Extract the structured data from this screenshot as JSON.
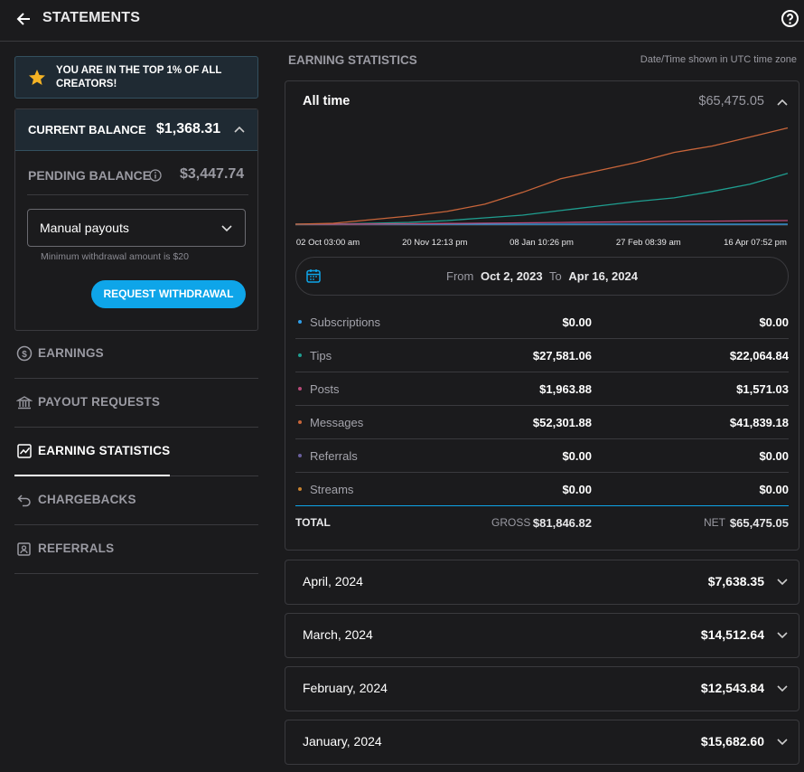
{
  "header": {
    "title": "STATEMENTS"
  },
  "sidebar": {
    "banner": "YOU ARE IN THE TOP 1% OF ALL CREATORS!",
    "current_balance": {
      "label": "CURRENT BALANCE",
      "value": "$1,368.31"
    },
    "pending_balance": {
      "label": "PENDING BALANCE",
      "value": "$3,447.74"
    },
    "payout_select": "Manual payouts",
    "note": "Minimum withdrawal amount is $20",
    "button": "REQUEST WITHDRAWAL",
    "nav": [
      "EARNINGS",
      "PAYOUT REQUESTS",
      "EARNING STATISTICS",
      "CHARGEBACKS",
      "REFERRALS"
    ],
    "active_nav": 2
  },
  "main": {
    "section_title": "EARNING STATISTICS",
    "timezone_note": "Date/Time shown in UTC time zone",
    "period": "All time",
    "period_total": "$65,475.05",
    "chart": {
      "type": "line",
      "ylim": [
        0,
        46000
      ],
      "xtick_labels": [
        "02 Oct 03:00 am",
        "20 Nov 12:13 pm",
        "08 Jan 10:26 pm",
        "27 Feb 08:39 am",
        "16 Apr 07:52 pm"
      ],
      "series": [
        {
          "color": "#2f9ee8",
          "values": [
            0,
            0,
            0,
            0,
            0,
            0,
            0,
            0,
            0,
            0,
            0,
            0,
            0,
            0
          ]
        },
        {
          "color": "#1f9e90",
          "values": [
            0,
            0,
            395,
            790,
            1580,
            2765,
            3950,
            5925,
            7900,
            9875,
            11455,
            14220,
            17380,
            22120
          ]
        },
        {
          "color": "#b84a78",
          "values": [
            0,
            0,
            100,
            200,
            300,
            450,
            600,
            750,
            900,
            1050,
            1200,
            1350,
            1450,
            1571
          ]
        },
        {
          "color": "#c8653a",
          "values": [
            0,
            395,
            1975,
            3555,
            5530,
            8690,
            13825,
            19750,
            23305,
            26860,
            31205,
            33970,
            37920,
            41870
          ]
        }
      ]
    },
    "date_range": {
      "from_label": "From",
      "from": "Oct 2, 2023",
      "to_label": "To",
      "to": "Apr 16, 2024"
    },
    "rows": [
      {
        "name": "Subscriptions",
        "color": "#2f9ee8",
        "gross": "$0.00",
        "net": "$0.00"
      },
      {
        "name": "Tips",
        "color": "#1f9e90",
        "gross": "$27,581.06",
        "net": "$22,064.84"
      },
      {
        "name": "Posts",
        "color": "#b84a78",
        "gross": "$1,963.88",
        "net": "$1,571.03"
      },
      {
        "name": "Messages",
        "color": "#c8653a",
        "gross": "$52,301.88",
        "net": "$41,839.18"
      },
      {
        "name": "Referrals",
        "color": "#6a5f9e",
        "gross": "$0.00",
        "net": "$0.00"
      },
      {
        "name": "Streams",
        "color": "#c8822f",
        "gross": "$0.00",
        "net": "$0.00"
      }
    ],
    "total": {
      "label": "TOTAL",
      "gross_label": "GROSS",
      "gross": "$81,846.82",
      "net_label": "NET",
      "net": "$65,475.05"
    },
    "months": [
      {
        "name": "April, 2024",
        "total": "$7,638.35"
      },
      {
        "name": "March, 2024",
        "total": "$14,512.64"
      },
      {
        "name": "February, 2024",
        "total": "$12,543.84"
      },
      {
        "name": "January, 2024",
        "total": "$15,682.60"
      }
    ]
  }
}
